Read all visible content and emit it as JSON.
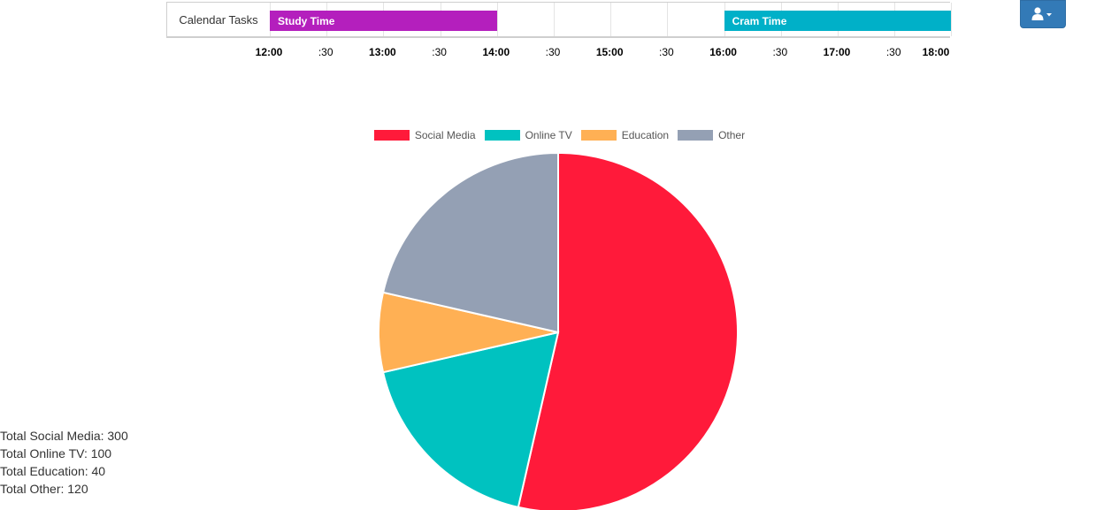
{
  "timeline": {
    "row_label": "Calendar Tasks",
    "tasks": [
      {
        "label": "Study Time",
        "start": "12:00",
        "end": "14:00",
        "color": "#b41fbd"
      },
      {
        "label": "Cram Time",
        "start": "16:00",
        "end": "18:00",
        "color": "#00b0c8"
      }
    ],
    "ticks": [
      "12:00",
      ":30",
      "13:00",
      ":30",
      "14:00",
      ":30",
      "15:00",
      ":30",
      "16:00",
      ":30",
      "17:00",
      ":30",
      "18:00"
    ]
  },
  "user_menu": {
    "icon": "user-icon",
    "caret": "caret-down-icon",
    "color": "#337ab7"
  },
  "chart_data": {
    "type": "pie",
    "categories": [
      "Social Media",
      "Online TV",
      "Education",
      "Other"
    ],
    "values": [
      300,
      100,
      40,
      120
    ],
    "colors": [
      "#ff1a3a",
      "#00c2c0",
      "#ffb054",
      "#94a0b4"
    ],
    "legend": "top"
  },
  "totals": [
    {
      "label": "Total Social Media: 300"
    },
    {
      "label": "Total Online TV: 100"
    },
    {
      "label": "Total Education: 40"
    },
    {
      "label": "Total Other: 120"
    }
  ]
}
